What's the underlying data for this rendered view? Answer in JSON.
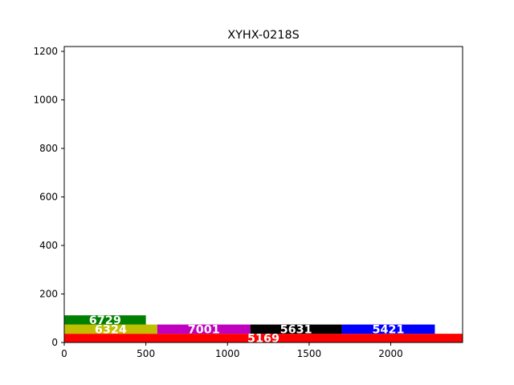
{
  "chart_data": {
    "type": "bar",
    "orientation": "horizontal-stacked",
    "title": "XYHX-0218S",
    "xlabel": "",
    "ylabel": "",
    "xlim": [
      0,
      2440
    ],
    "ylim": [
      0,
      1220
    ],
    "grid": false,
    "x_ticks": [
      "0",
      "500",
      "1000",
      "1500",
      "2000"
    ],
    "x_tick_values": [
      0,
      500,
      1000,
      1500,
      2000
    ],
    "y_ticks": [
      "0",
      "200",
      "400",
      "600",
      "800",
      "1000",
      "1200"
    ],
    "y_tick_values": [
      0,
      200,
      400,
      600,
      800,
      1000,
      1200
    ],
    "bars": [
      {
        "label": "5169",
        "x0": 0,
        "x1": 2440,
        "y0": 0,
        "y1": 36,
        "color": "#ff0000"
      },
      {
        "label": "6324",
        "x0": 0,
        "x1": 570,
        "y0": 36,
        "y1": 74,
        "color": "#bfbf00"
      },
      {
        "label": "7001",
        "x0": 570,
        "x1": 1140,
        "y0": 36,
        "y1": 74,
        "color": "#bf00bf"
      },
      {
        "label": "5631",
        "x0": 1140,
        "x1": 1700,
        "y0": 36,
        "y1": 74,
        "color": "#000000"
      },
      {
        "label": "5421",
        "x0": 1700,
        "x1": 2270,
        "y0": 36,
        "y1": 74,
        "color": "#0000ff"
      },
      {
        "label": "6729",
        "x0": 0,
        "x1": 500,
        "y0": 74,
        "y1": 112,
        "color": "#008000"
      }
    ]
  }
}
